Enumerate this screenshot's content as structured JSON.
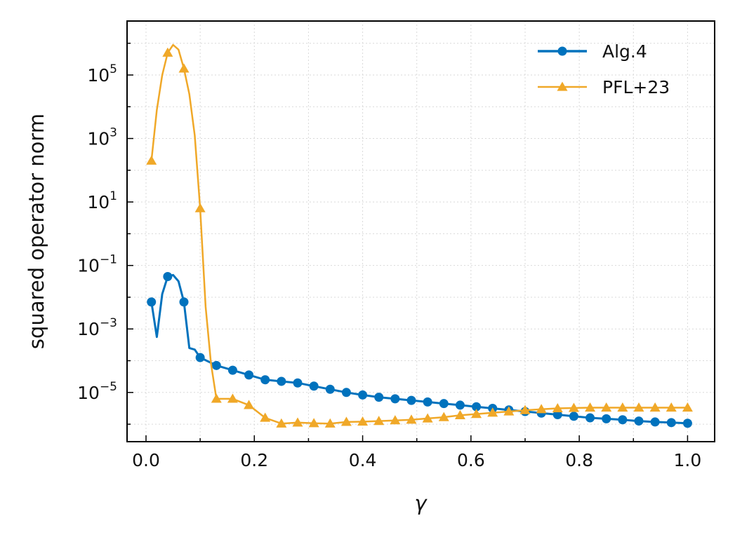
{
  "chart_data": {
    "type": "line",
    "title": "",
    "xlabel": "γ",
    "ylabel": "squared operator norm",
    "xlim": [
      -0.035,
      1.05
    ],
    "ylim_log10": [
      -6.55,
      6.7
    ],
    "yscale": "log",
    "grid": true,
    "legend_position": "top-right",
    "x_ticks": [
      {
        "value": 0.0,
        "label": "0.0"
      },
      {
        "value": 0.2,
        "label": "0.2"
      },
      {
        "value": 0.4,
        "label": "0.4"
      },
      {
        "value": 0.6,
        "label": "0.6"
      },
      {
        "value": 0.8,
        "label": "0.8"
      },
      {
        "value": 1.0,
        "label": "1.0"
      }
    ],
    "y_ticks": [
      {
        "exp": 5,
        "base": "10",
        "sup": "5"
      },
      {
        "exp": 3,
        "base": "10",
        "sup": "3"
      },
      {
        "exp": 1,
        "base": "10",
        "sup": "1"
      },
      {
        "exp": -1,
        "base": "10",
        "sup": "−1"
      },
      {
        "exp": -3,
        "base": "10",
        "sup": "−3"
      },
      {
        "exp": -5,
        "base": "10",
        "sup": "−5"
      }
    ],
    "series": [
      {
        "name": "Alg.4",
        "color": "#0072BD",
        "marker": "circle",
        "x": [
          0.01,
          0.02,
          0.03,
          0.04,
          0.05,
          0.06,
          0.07,
          0.08,
          0.09,
          0.1,
          0.13,
          0.16,
          0.19,
          0.22,
          0.25,
          0.28,
          0.31,
          0.34,
          0.37,
          0.4,
          0.43,
          0.46,
          0.49,
          0.52,
          0.55,
          0.58,
          0.61,
          0.64,
          0.67,
          0.7,
          0.73,
          0.76,
          0.79,
          0.82,
          0.85,
          0.88,
          0.91,
          0.94,
          0.97,
          1.0
        ],
        "log10_y": [
          -2.15,
          -3.25,
          -1.9,
          -1.35,
          -1.3,
          -1.5,
          -2.15,
          -3.6,
          -3.65,
          -3.9,
          -4.15,
          -4.3,
          -4.45,
          -4.6,
          -4.65,
          -4.7,
          -4.8,
          -4.9,
          -5.0,
          -5.08,
          -5.15,
          -5.2,
          -5.25,
          -5.3,
          -5.35,
          -5.4,
          -5.45,
          -5.5,
          -5.55,
          -5.6,
          -5.65,
          -5.7,
          -5.75,
          -5.8,
          -5.83,
          -5.86,
          -5.9,
          -5.93,
          -5.95,
          -5.97
        ],
        "marker_indices": [
          0,
          3,
          6,
          9,
          10,
          11,
          12,
          13,
          14,
          15,
          16,
          17,
          18,
          19,
          20,
          21,
          22,
          23,
          24,
          25,
          26,
          27,
          28,
          29,
          30,
          31,
          32,
          33,
          34,
          35,
          36,
          37,
          38,
          39
        ]
      },
      {
        "name": "PFL+23",
        "color": "#F0A828",
        "marker": "triangle",
        "x": [
          0.01,
          0.02,
          0.03,
          0.04,
          0.05,
          0.06,
          0.07,
          0.08,
          0.09,
          0.1,
          0.11,
          0.12,
          0.13,
          0.16,
          0.19,
          0.22,
          0.25,
          0.28,
          0.31,
          0.34,
          0.37,
          0.4,
          0.43,
          0.46,
          0.49,
          0.52,
          0.55,
          0.58,
          0.61,
          0.64,
          0.67,
          0.7,
          0.73,
          0.76,
          0.79,
          0.82,
          0.85,
          0.88,
          0.91,
          0.94,
          0.97,
          1.0
        ],
        "log10_y": [
          2.3,
          3.9,
          5.0,
          5.7,
          5.95,
          5.8,
          5.2,
          4.4,
          3.1,
          0.8,
          -2.3,
          -4.1,
          -5.2,
          -5.2,
          -5.4,
          -5.8,
          -5.98,
          -5.95,
          -5.97,
          -5.98,
          -5.93,
          -5.92,
          -5.9,
          -5.88,
          -5.86,
          -5.82,
          -5.78,
          -5.72,
          -5.68,
          -5.64,
          -5.6,
          -5.56,
          -5.53,
          -5.5,
          -5.49,
          -5.48,
          -5.48,
          -5.48,
          -5.48,
          -5.48,
          -5.48,
          -5.48
        ],
        "marker_indices": [
          0,
          3,
          6,
          9,
          12,
          13,
          14,
          15,
          16,
          17,
          18,
          19,
          20,
          21,
          22,
          23,
          24,
          25,
          26,
          27,
          28,
          29,
          30,
          31,
          32,
          33,
          34,
          35,
          36,
          37,
          38,
          39,
          40,
          41
        ]
      }
    ]
  }
}
